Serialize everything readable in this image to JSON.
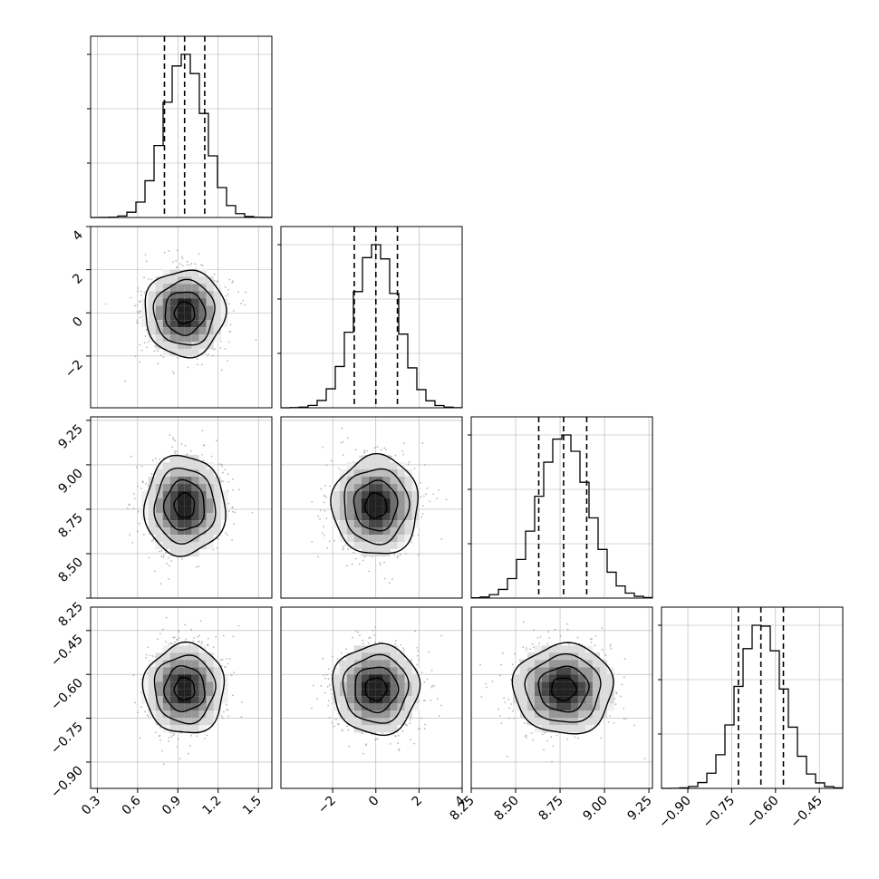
{
  "chart_data": {
    "type": "corner",
    "parameters": [
      {
        "index": 0,
        "mean": 0.95,
        "std": 0.15,
        "range": [
          0.25,
          1.6
        ],
        "quantiles": [
          0.8,
          0.95,
          1.1
        ],
        "ticks": [
          0.3,
          0.6,
          0.9,
          1.2,
          1.5
        ],
        "tick_labels": [
          "0.3",
          "0.6",
          "0.9",
          "1.2",
          "1.5"
        ]
      },
      {
        "index": 1,
        "mean": 0.0,
        "std": 1.0,
        "range": [
          -4.4,
          4.0
        ],
        "quantiles": [
          -1.0,
          0.0,
          1.0
        ],
        "ticks": [
          -2,
          0,
          2,
          4
        ],
        "tick_labels": [
          "−2",
          "0",
          "2",
          "4"
        ]
      },
      {
        "index": 2,
        "mean": 8.77,
        "std": 0.14,
        "range": [
          8.25,
          9.27
        ],
        "quantiles": [
          8.63,
          8.77,
          8.9
        ],
        "ticks": [
          8.25,
          8.5,
          8.75,
          9.0,
          9.25
        ],
        "tick_labels": [
          "8.25",
          "8.50",
          "8.75",
          "9.00",
          "9.25"
        ]
      },
      {
        "index": 3,
        "mean": -0.65,
        "std": 0.077,
        "range": [
          -0.99,
          -0.37
        ],
        "quantiles": [
          -0.727,
          -0.65,
          -0.573
        ],
        "ticks": [
          -0.9,
          -0.75,
          -0.6,
          -0.45
        ],
        "tick_labels": [
          "−0.90",
          "−0.75",
          "−0.60",
          "−0.45"
        ]
      }
    ],
    "histogram_bins": 20,
    "contour_levels": 4,
    "grid": true,
    "quantile_line_style": "dashed",
    "colors": {
      "line": "#000000",
      "scatter": "#9a9a9a",
      "grid": "#b0b0b0"
    }
  }
}
